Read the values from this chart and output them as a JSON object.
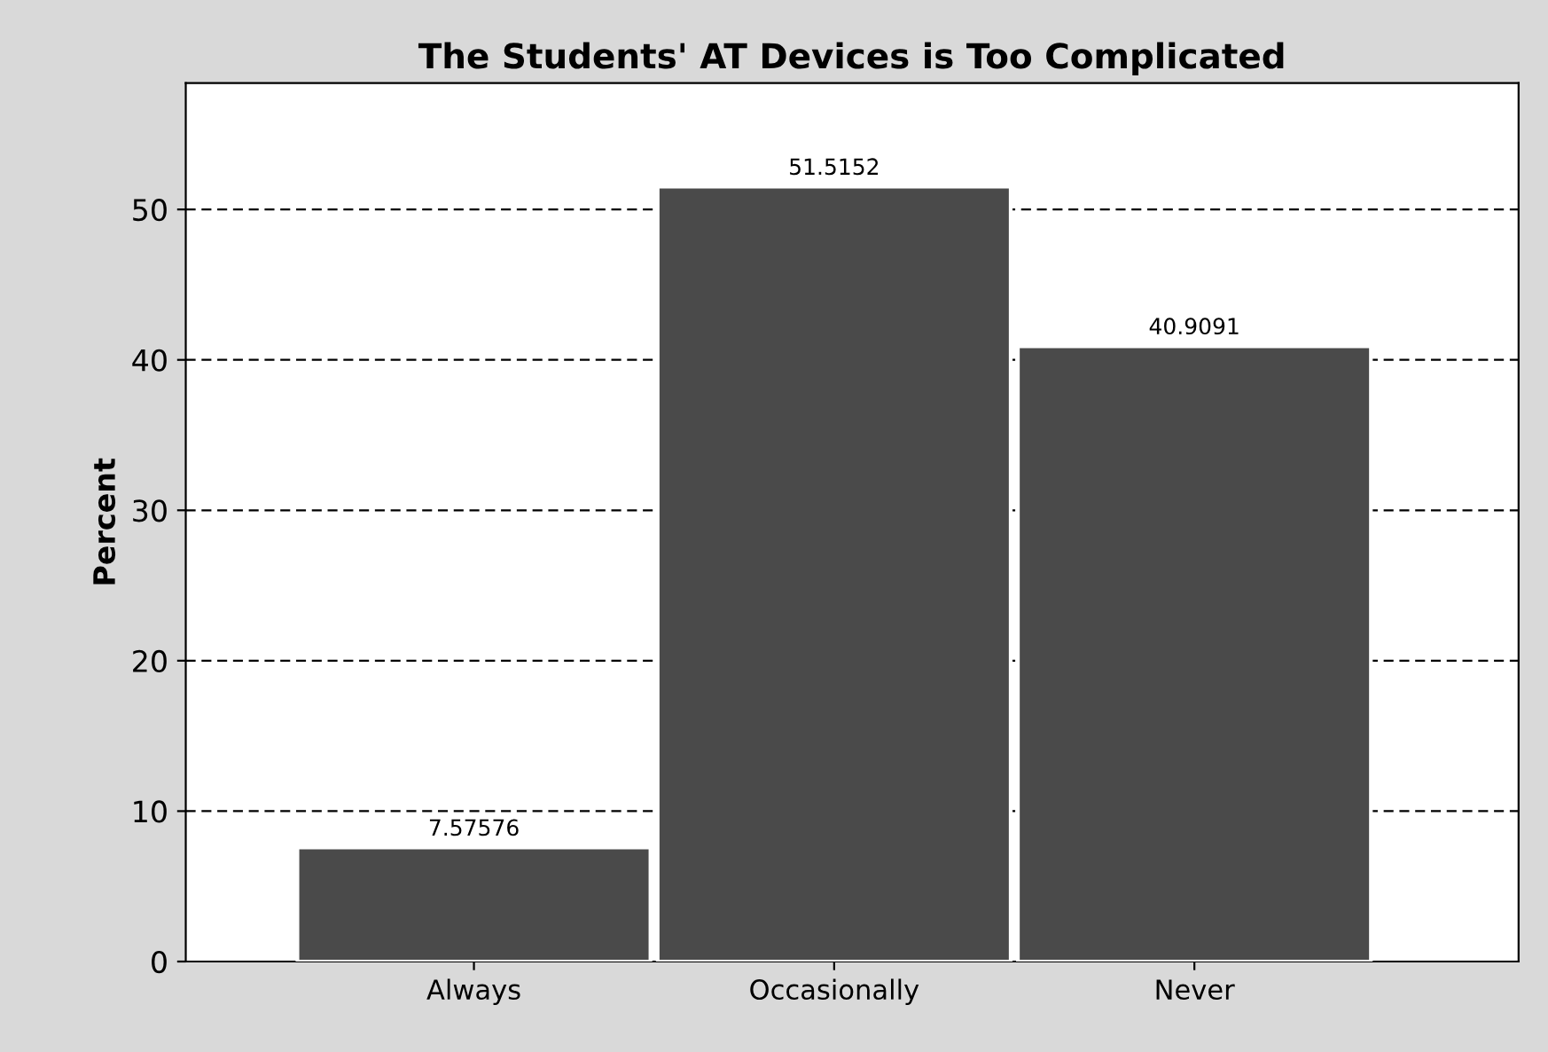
{
  "chart_data": {
    "type": "bar",
    "title": "The Students' AT Devices is Too Complicated",
    "ylabel": "Percent",
    "categories": [
      "Always",
      "Occasionally",
      "Never"
    ],
    "values": [
      7.57576,
      51.5152,
      40.9091
    ],
    "color": "#4a4a4a",
    "data_labels": true,
    "grid": "y",
    "legend": false,
    "ylim": [
      0,
      58.4
    ],
    "yticks": [
      0,
      10,
      20,
      30,
      40,
      50
    ]
  }
}
